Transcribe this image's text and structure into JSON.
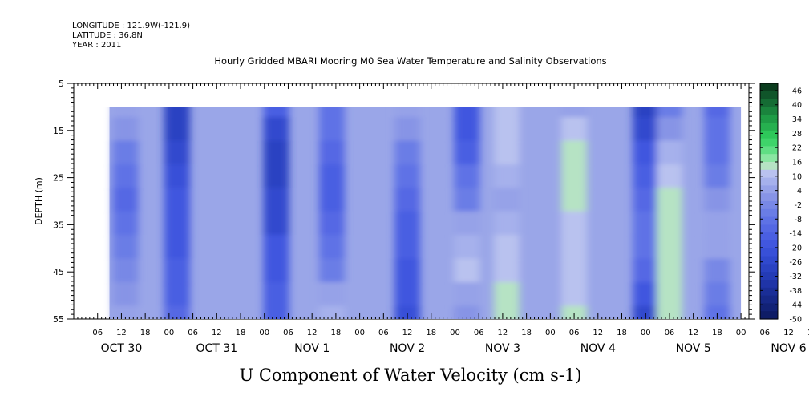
{
  "header": {
    "longitude": "LONGITUDE : 121.9W(-121.9)",
    "latitude": "LATITUDE : 36.8N",
    "year": "YEAR : 2011"
  },
  "chart_data": {
    "type": "heatmap",
    "title": "Hourly Gridded MBARI Mooring M0 Sea Water Temperature and Salinity Observations",
    "xlabel": "U Component of Water Velocity (cm s-1)",
    "ylabel": "DEPTH (m)",
    "y_ticks": [
      "5",
      "15",
      "25",
      "35",
      "45",
      "55"
    ],
    "y_range": [
      5,
      55
    ],
    "y_inverted": true,
    "data_depth_range": [
      10,
      55
    ],
    "x_range_hours": [
      0,
      170
    ],
    "data_time_range_hours": [
      9,
      168
    ],
    "hour_labels": [
      "06",
      "12",
      "18",
      "00",
      "06",
      "12",
      "18",
      "00",
      "06",
      "12",
      "18",
      "00",
      "06",
      "12",
      "18",
      "00",
      "06",
      "12",
      "18",
      "00",
      "06",
      "12",
      "18",
      "00",
      "06",
      "12",
      "18",
      "00",
      "06",
      "12",
      "18",
      "00"
    ],
    "day_labels": [
      "OCT 30",
      "OCT 31",
      "NOV  1",
      "NOV  2",
      "NOV  3",
      "NOV  4",
      "NOV  5",
      "NOV  6"
    ],
    "colorbar": {
      "labels": [
        "46",
        "40",
        "34",
        "28",
        "22",
        "16",
        "10",
        "4",
        "-2",
        "-8",
        "-14",
        "-20",
        "-26",
        "-32",
        "-38",
        "-44",
        "-50"
      ],
      "range": [
        -50,
        49
      ],
      "colors": [
        "#0b3d1e",
        "#10552a",
        "#156c34",
        "#1a843d",
        "#1f9c46",
        "#26b04f",
        "#2ec85a",
        "#3fd46a",
        "#60de84",
        "#8ae6a2",
        "#b6e3c4",
        "#b9c2ef",
        "#a6b1ec",
        "#96a2e8",
        "#8794e6",
        "#7888e6",
        "#6a7de6",
        "#5e72e6",
        "#5468e4",
        "#4a5fe2",
        "#4157df",
        "#3850d8",
        "#3049ce",
        "#2a42c2",
        "#243bb5",
        "#1f34a7",
        "#1a2e97",
        "#162887",
        "#122276",
        "#0e1c66"
      ]
    },
    "series": [
      {
        "time_hours": 13,
        "velocity_cm_s": [
          4,
          2,
          -6,
          -10,
          -12,
          -8,
          -4,
          -2,
          2,
          6
        ]
      },
      {
        "time_hours": 26,
        "velocity_cm_s": [
          -30,
          -28,
          -24,
          -22,
          -20,
          -20,
          -18,
          -16,
          -14,
          -12
        ]
      },
      {
        "time_hours": 51,
        "velocity_cm_s": [
          -14,
          -24,
          -30,
          -30,
          -26,
          -24,
          -20,
          -18,
          -16,
          -14
        ]
      },
      {
        "time_hours": 65,
        "velocity_cm_s": [
          -8,
          -10,
          -12,
          -14,
          -14,
          -12,
          -10,
          -6,
          4,
          8
        ]
      },
      {
        "time_hours": 84,
        "velocity_cm_s": [
          6,
          2,
          -4,
          -8,
          -12,
          -14,
          -16,
          -18,
          -20,
          -22
        ]
      },
      {
        "time_hours": 99,
        "velocity_cm_s": [
          -20,
          -18,
          -14,
          -10,
          -4,
          4,
          8,
          10,
          6,
          2
        ]
      },
      {
        "time_hours": 109,
        "velocity_cm_s": [
          10,
          12,
          10,
          8,
          6,
          8,
          10,
          12,
          14,
          14
        ]
      },
      {
        "time_hours": 126,
        "velocity_cm_s": [
          4,
          10,
          14,
          16,
          14,
          12,
          10,
          10,
          12,
          14
        ]
      },
      {
        "time_hours": 144,
        "velocity_cm_s": [
          -30,
          -26,
          -20,
          -16,
          -12,
          -10,
          -8,
          -12,
          -18,
          -24
        ]
      },
      {
        "time_hours": 150,
        "velocity_cm_s": [
          -6,
          2,
          8,
          12,
          14,
          14,
          14,
          16,
          16,
          14
        ]
      },
      {
        "time_hours": 162,
        "velocity_cm_s": [
          -12,
          -10,
          -8,
          -6,
          2,
          6,
          4,
          -2,
          -6,
          -8
        ]
      }
    ]
  }
}
